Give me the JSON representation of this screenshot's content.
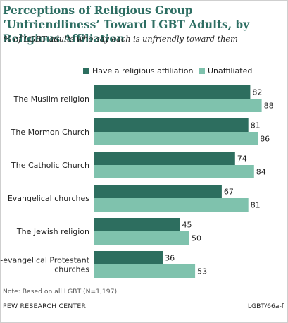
{
  "chart_data": {
    "type": "bar",
    "orientation": "horizontal",
    "title": "Perceptions of Religious Group ‘Unfriendliness’ Toward LGBT Adults, by Religious Affiliation",
    "subtitle": "% of LGBT adults who say each is unfriendly toward them",
    "categories": [
      "The Muslim religion",
      "The Mormon Church",
      "The Catholic Church",
      "Evangelical churches",
      "The Jewish religion",
      "Non-evangelical Protestant churches"
    ],
    "series": [
      {
        "name": "Have a religious affiliation",
        "values": [
          82,
          81,
          74,
          67,
          45,
          36
        ],
        "color": "#2d6e5f"
      },
      {
        "name": "Unaffiliated",
        "values": [
          88,
          86,
          84,
          81,
          50,
          53
        ],
        "color": "#7fc2ad"
      }
    ],
    "xlim": [
      0,
      100
    ],
    "grid": false,
    "legend": "top",
    "note": "Note: Based on all LGBT (N=1,197).",
    "source": "PEW RESEARCH CENTER",
    "code": "LGBT/66a-f"
  }
}
